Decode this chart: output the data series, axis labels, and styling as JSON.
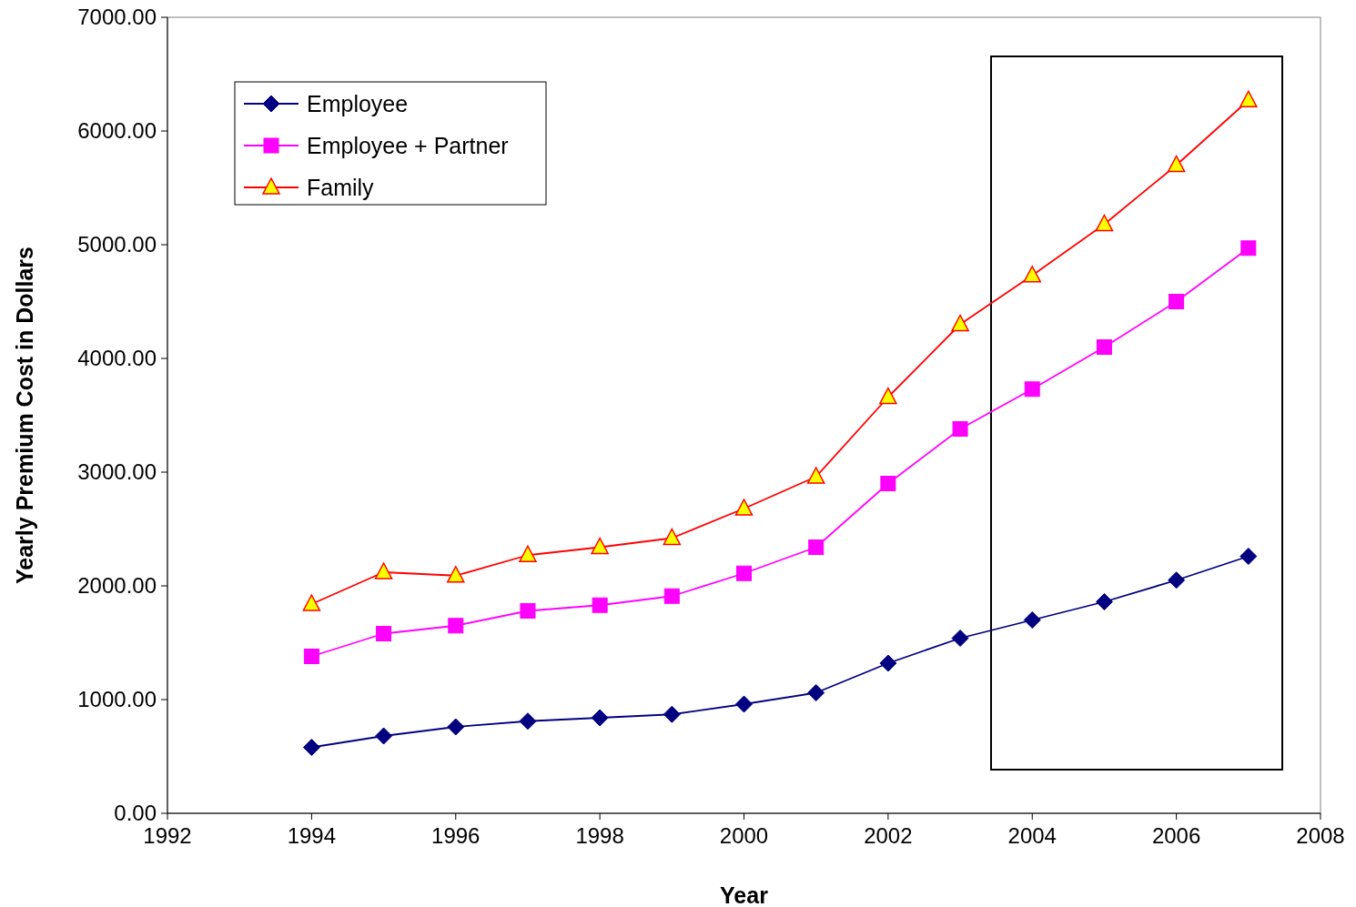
{
  "chart_data": {
    "type": "line",
    "xlabel": "Year",
    "ylabel": "Yearly Premium Cost in Dollars",
    "x": [
      1994,
      1995,
      1996,
      1997,
      1998,
      1999,
      2000,
      2001,
      2002,
      2003,
      2004,
      2005,
      2006,
      2007
    ],
    "series": [
      {
        "name": "Employee",
        "color": "#000080",
        "marker": "diamond",
        "values": [
          580,
          680,
          760,
          810,
          840,
          870,
          960,
          1060,
          1320,
          1540,
          1700,
          1860,
          2050,
          2260
        ]
      },
      {
        "name": "Employee + Partner",
        "color": "#ff00ff",
        "marker": "square",
        "values": [
          1380,
          1580,
          1650,
          1780,
          1830,
          1910,
          2110,
          2340,
          2900,
          3380,
          3730,
          4100,
          4500,
          4970
        ]
      },
      {
        "name": "Family",
        "color": "#ff0000",
        "marker": "triangle",
        "values": [
          1840,
          2120,
          2090,
          2270,
          2340,
          2420,
          2680,
          2960,
          3660,
          4300,
          4730,
          5180,
          5700,
          6270
        ]
      }
    ],
    "xlim": [
      1992,
      2008
    ],
    "xticks": [
      1992,
      1994,
      1996,
      1998,
      2000,
      2002,
      2004,
      2006,
      2008
    ],
    "ylim": [
      0,
      7000
    ],
    "yticks": [
      {
        "value": 0,
        "label": "0.00"
      },
      {
        "value": 1000,
        "label": "1000.00"
      },
      {
        "value": 2000,
        "label": "2000.00"
      },
      {
        "value": 3000,
        "label": "3000.00"
      },
      {
        "value": 4000,
        "label": "4000.00"
      },
      {
        "value": 5000,
        "label": "5000.00"
      },
      {
        "value": 6000,
        "label": "6000.00"
      },
      {
        "value": 7000,
        "label": "7000.00"
      }
    ],
    "grid": false,
    "legend": "top left",
    "line_style": "solid"
  }
}
